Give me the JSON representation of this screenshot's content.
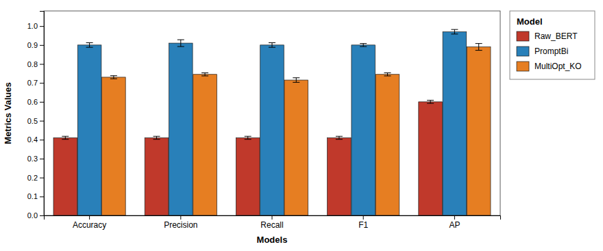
{
  "chart_data": {
    "type": "bar",
    "xlabel": "Models",
    "ylabel": "Metrics Values",
    "legend_title": "Model",
    "categories": [
      "Accuracy",
      "Precision",
      "Recall",
      "F1",
      "AP"
    ],
    "series": [
      {
        "name": "Raw_BERT",
        "color": "#C0392B",
        "values": [
          0.41,
          0.41,
          0.41,
          0.41,
          0.6
        ],
        "errors": [
          0.008,
          0.008,
          0.008,
          0.008,
          0.008
        ]
      },
      {
        "name": "PromptBi",
        "color": "#2980B9",
        "values": [
          0.9,
          0.91,
          0.9,
          0.9,
          0.97
        ],
        "errors": [
          0.012,
          0.018,
          0.012,
          0.008,
          0.012
        ]
      },
      {
        "name": "MultiOpt_KO",
        "color": "#E67E22",
        "values": [
          0.73,
          0.745,
          0.715,
          0.745,
          0.89
        ],
        "errors": [
          0.008,
          0.008,
          0.012,
          0.008,
          0.018
        ]
      }
    ],
    "ylim": [
      0.0,
      1.08
    ],
    "yticks": [
      {
        "value": 0.0,
        "label": "0.0"
      },
      0.1,
      0.2,
      0.3,
      0.4,
      0.5,
      0.6,
      0.7,
      0.8,
      0.9,
      {
        "value": 1.0,
        "label": "1.0"
      }
    ],
    "grid": false,
    "legend": "right"
  }
}
